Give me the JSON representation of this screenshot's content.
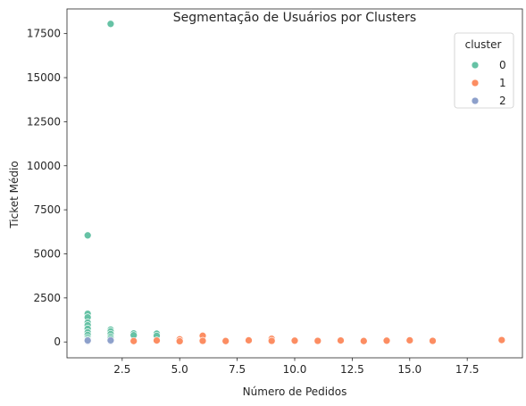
{
  "chart_data": {
    "type": "scatter",
    "title": "Segmentação de Usuários por Clusters",
    "xlabel": "Número de Pedidos",
    "ylabel": "Ticket Médio",
    "xlim": [
      0.1,
      19.9
    ],
    "ylim": [
      -900,
      18900
    ],
    "xticks": [
      2.5,
      5.0,
      7.5,
      10.0,
      12.5,
      15.0,
      17.5
    ],
    "xtick_labels": [
      "2.5",
      "5.0",
      "7.5",
      "10.0",
      "12.5",
      "15.0",
      "17.5"
    ],
    "yticks": [
      0,
      2500,
      5000,
      7500,
      10000,
      12500,
      15000,
      17500
    ],
    "ytick_labels": [
      "0",
      "2500",
      "5000",
      "7500",
      "10000",
      "12500",
      "15000",
      "17500"
    ],
    "grid": false,
    "legend": {
      "title": "cluster",
      "placement": "upper right"
    },
    "series": [
      {
        "name": "0",
        "color": "#66c2a5",
        "points": [
          [
            1,
            6050
          ],
          [
            1,
            1600
          ],
          [
            1,
            1400
          ],
          [
            1,
            1100
          ],
          [
            1,
            950
          ],
          [
            1,
            750
          ],
          [
            1,
            550
          ],
          [
            1,
            400
          ],
          [
            1,
            250
          ],
          [
            1,
            150
          ],
          [
            2,
            18050
          ],
          [
            2,
            700
          ],
          [
            2,
            600
          ],
          [
            2,
            450
          ],
          [
            2,
            300
          ],
          [
            2,
            200
          ],
          [
            3,
            480
          ],
          [
            3,
            380
          ],
          [
            4,
            470
          ],
          [
            4,
            350
          ]
        ]
      },
      {
        "name": "1",
        "color": "#fc8d62",
        "points": [
          [
            3,
            50
          ],
          [
            4,
            80
          ],
          [
            5,
            150
          ],
          [
            5,
            40
          ],
          [
            6,
            350
          ],
          [
            6,
            60
          ],
          [
            7,
            50
          ],
          [
            8,
            90
          ],
          [
            9,
            180
          ],
          [
            9,
            60
          ],
          [
            10,
            70
          ],
          [
            11,
            60
          ],
          [
            12,
            80
          ],
          [
            13,
            50
          ],
          [
            14,
            70
          ],
          [
            15,
            90
          ],
          [
            16,
            60
          ],
          [
            19,
            110
          ]
        ]
      },
      {
        "name": "2",
        "color": "#8da0cb",
        "points": [
          [
            1,
            30
          ],
          [
            1,
            80
          ],
          [
            2,
            40
          ],
          [
            2,
            90
          ]
        ]
      }
    ]
  }
}
